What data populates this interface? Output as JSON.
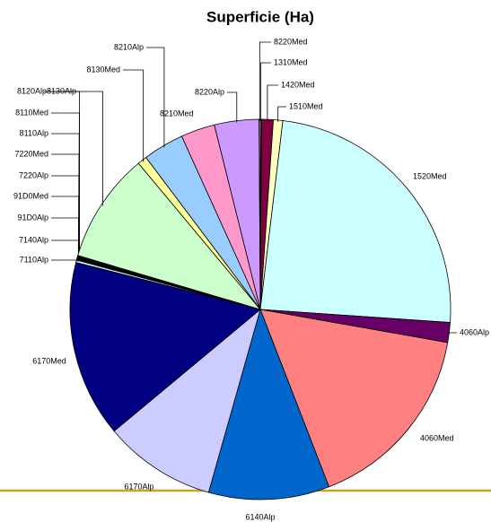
{
  "chart_data": {
    "type": "pie",
    "title": "Superficie (Ha)",
    "categories": [
      "1310Med",
      "1420Med",
      "1510Med",
      "1520Med",
      "4060Alp",
      "4060Med",
      "6140Alp",
      "6170Alp",
      "6170Med",
      "7110Alp",
      "7140Alp",
      "91D0Alp",
      "91D0Med",
      "7220Alp",
      "7220Med",
      "8110Alp",
      "8110Med",
      "8120Alp",
      "8130Alp",
      "8130Med",
      "8210Alp",
      "8210Med",
      "8220Alp",
      "8220Med"
    ],
    "values": [
      0.1,
      1.0,
      0.8,
      24.3,
      1.7,
      16.4,
      10.3,
      9.6,
      15.1,
      0.2,
      0.05,
      0.05,
      0.05,
      0.05,
      0.05,
      0.05,
      0.05,
      0.05,
      9.4,
      0.8,
      3.5,
      2.9,
      3.8,
      0.1
    ],
    "colors": [
      "#9999ff",
      "#800040",
      "#ffffc0",
      "#ccffff",
      "#660066",
      "#ff8080",
      "#0066cc",
      "#ccccff",
      "#000080",
      "#ccffff",
      "#800080",
      "#ff8080",
      "#0066cc",
      "#ccccff",
      "#000080",
      "#ff00ff",
      "#ffff00",
      "#00ffff",
      "#ccffcc",
      "#ffff99",
      "#99ccff",
      "#ff99cc",
      "#cc99ff",
      "#ffcc99"
    ]
  }
}
